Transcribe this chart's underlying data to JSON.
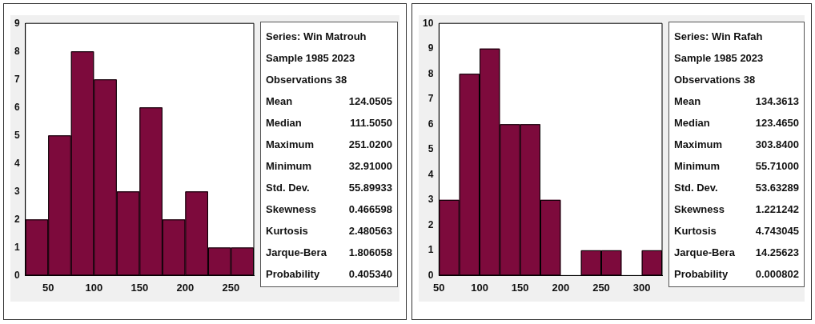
{
  "chart_data": [
    {
      "type": "histogram",
      "bins": [
        25,
        50,
        75,
        100,
        125,
        150,
        175,
        200,
        225,
        250,
        275
      ],
      "values": [
        2,
        5,
        8,
        7,
        3,
        6,
        2,
        3,
        1,
        1
      ],
      "color": "#7d0a3c",
      "xlim": [
        25,
        275
      ],
      "xticks": [
        50,
        100,
        150,
        200,
        250
      ],
      "ylim": [
        0,
        9
      ],
      "yticks": [
        0,
        1,
        2,
        3,
        4,
        5,
        6,
        7,
        8,
        9
      ],
      "annotations": [
        "Series: Win Matrouh",
        "Sample 1985 2023",
        "Observations 38",
        "Mean 124.0505",
        "Median 111.5050",
        "Maximum 251.0200",
        "Minimum 32.91000",
        "Std. Dev. 55.89933",
        "Skewness 0.466598",
        "Kurtosis 2.480563",
        "Jarque-Bera 1.806058",
        "Probability 0.405340"
      ]
    },
    {
      "type": "histogram",
      "bins": [
        50,
        75,
        100,
        125,
        150,
        175,
        200,
        225,
        250,
        275,
        300,
        325
      ],
      "values": [
        3,
        8,
        9,
        6,
        6,
        3,
        0,
        1,
        1,
        0,
        1
      ],
      "color": "#7d0a3c",
      "xlim": [
        50,
        325
      ],
      "xticks": [
        50,
        100,
        150,
        200,
        250,
        300
      ],
      "ylim": [
        0,
        10
      ],
      "yticks": [
        0,
        1,
        2,
        3,
        4,
        5,
        6,
        7,
        8,
        9,
        10
      ],
      "annotations": [
        "Series: Win Rafah",
        "Sample 1985 2023",
        "Observations 38",
        "Mean 134.3613",
        "Median 123.4650",
        "Maximum 303.8400",
        "Minimum 55.71000",
        "Std. Dev. 53.63289",
        "Skewness 1.221242",
        "Kurtosis 4.743045",
        "Jarque-Bera 14.25623",
        "Probability 0.000802"
      ]
    }
  ]
}
